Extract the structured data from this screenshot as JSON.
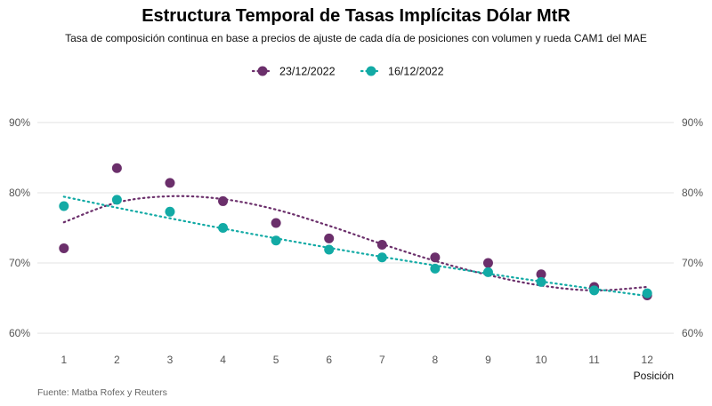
{
  "chart_data": {
    "type": "scatter",
    "title": "Estructura Temporal de Tasas Implícitas Dólar MtR",
    "subtitle": "Tasa de composición continua en base a precios de ajuste de cada día de posiciones con volumen y rueda CAM1 del MAE",
    "xlabel": "Posición",
    "ylabel": "",
    "caption": "Fuente: Matba Rofex y Reuters",
    "x": [
      1,
      2,
      3,
      4,
      5,
      6,
      7,
      8,
      9,
      10,
      11,
      12
    ],
    "xlim": [
      0.5,
      12.5
    ],
    "ylim": [
      58,
      92
    ],
    "y_ticks": [
      60,
      70,
      80,
      90
    ],
    "y_tick_labels": [
      "60%",
      "70%",
      "80%",
      "90%"
    ],
    "y_axis_both_sides": true,
    "grid": "horizontal",
    "legend_position": "top",
    "series": [
      {
        "name": "23/12/2022",
        "color": "#6b2f6b",
        "values": [
          72.1,
          83.5,
          81.4,
          78.8,
          75.7,
          73.5,
          72.6,
          70.8,
          70.0,
          68.4,
          66.6,
          65.4
        ],
        "trend": [
          75.8,
          78.6,
          79.5,
          79.1,
          77.6,
          75.3,
          72.7,
          70.3,
          68.3,
          66.8,
          66.1,
          66.6
        ]
      },
      {
        "name": "16/12/2022",
        "color": "#12aaa5",
        "values": [
          78.1,
          79.0,
          77.3,
          75.0,
          73.2,
          71.9,
          70.8,
          69.2,
          68.7,
          67.3,
          66.1,
          65.7
        ]
      }
    ]
  }
}
